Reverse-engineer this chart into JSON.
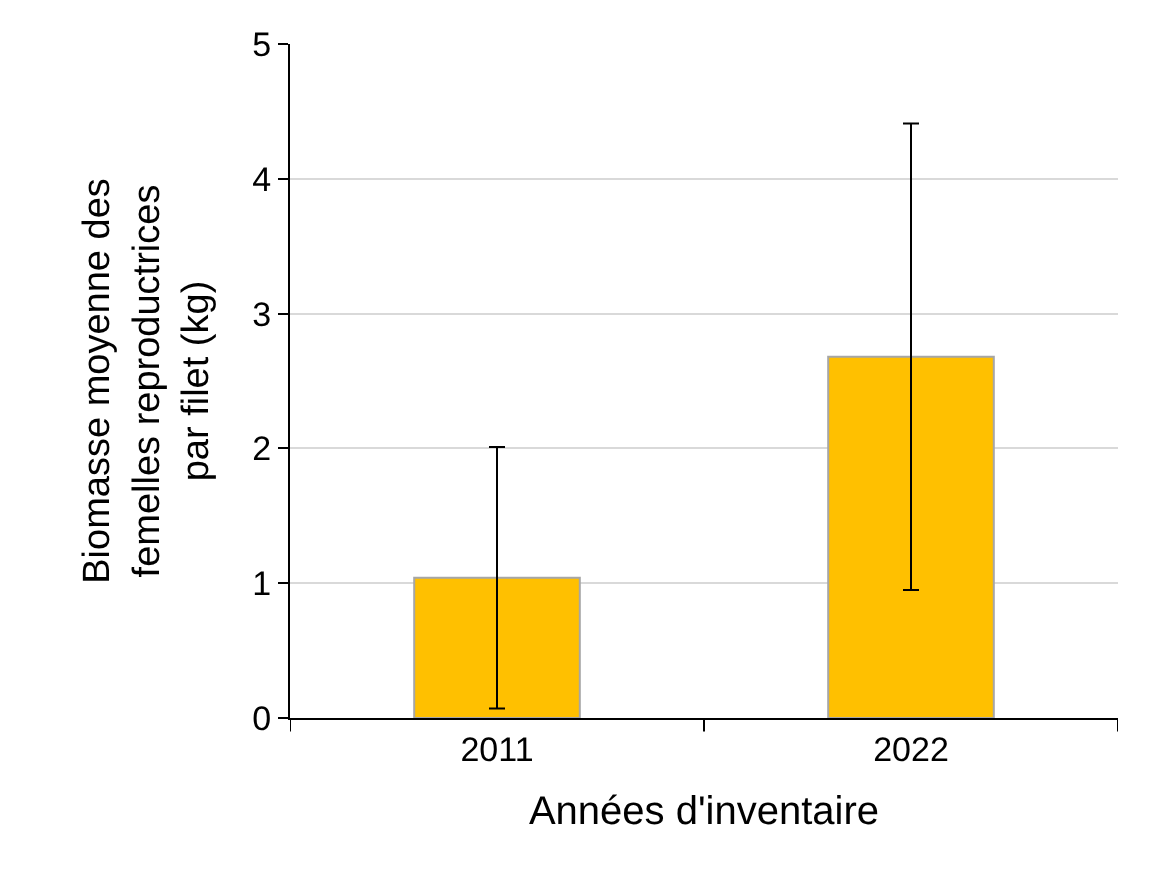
{
  "chart_data": {
    "type": "bar",
    "xlabel": "Années d'inventaire",
    "ylabel": "Biomasse moyenne des\nfemelles reproductrices\npar filet (kg)",
    "categories": [
      "2011",
      "2022"
    ],
    "values": [
      1.04,
      2.68
    ],
    "errors": [
      0.97,
      1.73
    ],
    "color": "#ffc000",
    "ylim": [
      0,
      5
    ],
    "yticks": [
      0,
      1,
      2,
      3,
      4,
      5
    ],
    "grid": "y"
  }
}
